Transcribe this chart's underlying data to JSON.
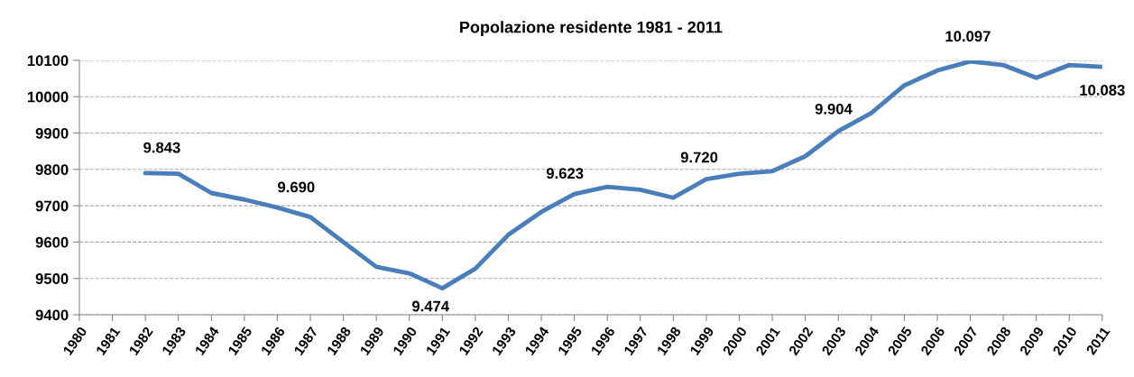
{
  "chart_data": {
    "type": "line",
    "title": "Popolazione residente 1981 - 2011",
    "categories": [
      "1980",
      "1981",
      "1982",
      "1983",
      "1984",
      "1985",
      "1986",
      "1987",
      "1988",
      "1989",
      "1990",
      "1991",
      "1992",
      "1993",
      "1994",
      "1995",
      "1996",
      "1997",
      "1998",
      "1999",
      "2000",
      "2001",
      "2002",
      "2003",
      "2004",
      "2005",
      "2006",
      "2007",
      "2008",
      "2009",
      "2010",
      "2011"
    ],
    "series": [
      {
        "color": "#4a7ebb",
        "values": [
          null,
          null,
          9790,
          9788,
          9735,
          9717,
          9695,
          9669,
          9600,
          9532,
          9514,
          9473,
          9527,
          9620,
          9683,
          9732,
          9752,
          9744,
          9722,
          9773,
          9788,
          9795,
          9836,
          9905,
          9955,
          10031,
          10072,
          10097,
          10087,
          10052,
          10087,
          10082
        ]
      }
    ],
    "ylim": [
      9400,
      10100
    ],
    "yticks": [
      9400,
      9500,
      9600,
      9700,
      9800,
      9900,
      10000,
      10100
    ],
    "grid": "y",
    "legend": false,
    "marker": "none",
    "line_style": "solid",
    "annotations": [
      "9.843",
      "9.690",
      "9.474",
      "9.623",
      "9.720",
      "9.904",
      "10.097",
      "10.083"
    ]
  }
}
